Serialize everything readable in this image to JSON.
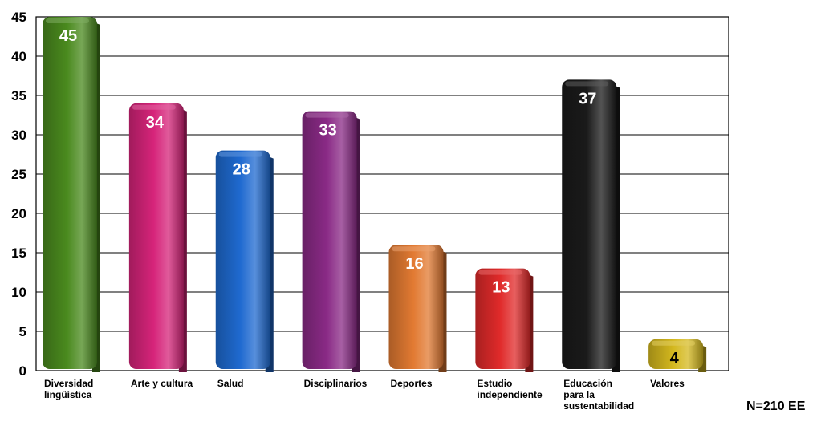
{
  "chart_data": {
    "type": "bar",
    "categories": [
      [
        "Diversidad",
        "lingüística"
      ],
      [
        "Arte y cultura"
      ],
      [
        "Salud"
      ],
      [
        "Disciplinarios"
      ],
      [
        "Deportes"
      ],
      [
        "Estudio",
        "independiente"
      ],
      [
        "Educación",
        "para la",
        "sustentabilidad"
      ],
      [
        "Valores"
      ]
    ],
    "values": [
      45,
      34,
      28,
      33,
      16,
      13,
      37,
      4
    ],
    "data_labels": [
      "45",
      "34",
      "28",
      "33",
      "16",
      "13",
      "37",
      "4"
    ],
    "bar_colors": [
      "#4a8a1e",
      "#d6247a",
      "#1f6ad0",
      "#8a2a86",
      "#e27a32",
      "#e02a2a",
      "#1a1a1a",
      "#d4b81e"
    ],
    "data_label_colors": [
      "#ffffff",
      "#ffffff",
      "#ffffff",
      "#ffffff",
      "#ffffff",
      "#ffffff",
      "#ffffff",
      "#000000"
    ],
    "ylim": [
      0,
      45
    ],
    "yticks": [
      0,
      5,
      10,
      15,
      20,
      25,
      30,
      35,
      40,
      45
    ],
    "grid": true,
    "title": "",
    "xlabel": "",
    "ylabel": ""
  },
  "note": "N=210 EE"
}
